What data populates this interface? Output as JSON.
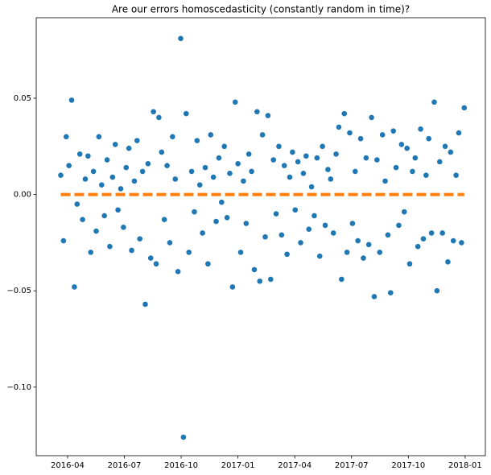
{
  "chart_data": {
    "type": "scatter",
    "title": "Are our errors homoscedasticity (constantly random in time)?",
    "series": [
      {
        "type": "scatter",
        "color": "#1f77b4",
        "x": [
          2016.22,
          2016.232,
          2016.244,
          2016.256,
          2016.268,
          2016.28,
          2016.292,
          2016.304,
          2016.316,
          2016.328,
          2016.34,
          2016.352,
          2016.364,
          2016.376,
          2016.388,
          2016.4,
          2016.412,
          2016.424,
          2016.436,
          2016.448,
          2016.46,
          2016.472,
          2016.484,
          2016.496,
          2016.508,
          2016.52,
          2016.532,
          2016.544,
          2016.556,
          2016.568,
          2016.58,
          2016.592,
          2016.604,
          2016.616,
          2016.628,
          2016.64,
          2016.652,
          2016.664,
          2016.676,
          2016.688,
          2016.7,
          2016.712,
          2016.724,
          2016.736,
          2016.748,
          2016.76,
          2016.772,
          2016.784,
          2016.796,
          2016.808,
          2016.82,
          2016.832,
          2016.844,
          2016.856,
          2016.868,
          2016.88,
          2016.892,
          2016.904,
          2016.916,
          2016.928,
          2016.94,
          2016.952,
          2016.964,
          2016.976,
          2016.988,
          2017.0,
          2017.012,
          2017.024,
          2017.036,
          2017.048,
          2017.06,
          2017.072,
          2017.084,
          2017.096,
          2017.108,
          2017.12,
          2017.132,
          2017.144,
          2017.156,
          2017.168,
          2017.18,
          2017.192,
          2017.204,
          2017.216,
          2017.228,
          2017.24,
          2017.252,
          2017.264,
          2017.276,
          2017.288,
          2017.3,
          2017.312,
          2017.324,
          2017.336,
          2017.348,
          2017.36,
          2017.372,
          2017.384,
          2017.396,
          2017.408,
          2017.42,
          2017.432,
          2017.444,
          2017.456,
          2017.468,
          2017.48,
          2017.492,
          2017.504,
          2017.516,
          2017.528,
          2017.54,
          2017.552,
          2017.564,
          2017.576,
          2017.588,
          2017.6,
          2017.612,
          2017.624,
          2017.636,
          2017.648,
          2017.66,
          2017.672,
          2017.684,
          2017.696,
          2017.708,
          2017.72,
          2017.732,
          2017.744,
          2017.756,
          2017.768,
          2017.78,
          2017.792,
          2017.804,
          2017.816,
          2017.828,
          2017.84,
          2017.852,
          2017.864,
          2017.876,
          2017.888,
          2017.9,
          2017.912,
          2017.924,
          2017.936,
          2017.948,
          2017.96,
          2017.972,
          2017.984,
          2017.996
        ],
        "values": [
          0.01,
          -0.024,
          0.03,
          0.015,
          0.049,
          -0.048,
          -0.005,
          0.021,
          -0.013,
          0.008,
          0.02,
          -0.03,
          0.012,
          -0.019,
          0.03,
          0.005,
          -0.011,
          0.018,
          -0.027,
          0.009,
          0.026,
          -0.008,
          0.003,
          -0.017,
          0.014,
          0.024,
          -0.029,
          0.007,
          0.028,
          -0.023,
          0.012,
          -0.057,
          0.016,
          -0.033,
          0.043,
          -0.036,
          0.04,
          0.022,
          -0.013,
          0.015,
          -0.025,
          0.03,
          0.008,
          -0.04,
          0.081,
          -0.126,
          0.042,
          -0.03,
          0.012,
          -0.009,
          0.028,
          0.005,
          -0.02,
          0.014,
          -0.036,
          0.031,
          0.009,
          -0.014,
          0.019,
          -0.004,
          0.025,
          -0.012,
          0.011,
          -0.048,
          0.048,
          0.016,
          -0.03,
          0.007,
          -0.015,
          0.021,
          0.012,
          -0.039,
          0.043,
          -0.045,
          0.031,
          -0.022,
          0.041,
          -0.044,
          0.018,
          -0.01,
          0.025,
          -0.021,
          0.015,
          -0.031,
          0.009,
          0.022,
          -0.008,
          0.017,
          -0.025,
          0.011,
          0.02,
          -0.018,
          0.004,
          -0.011,
          0.019,
          -0.032,
          0.025,
          -0.016,
          0.013,
          0.008,
          -0.02,
          0.021,
          0.035,
          -0.044,
          0.042,
          -0.03,
          0.032,
          -0.015,
          0.012,
          -0.024,
          0.029,
          -0.033,
          0.019,
          -0.026,
          0.04,
          -0.053,
          0.018,
          -0.03,
          0.031,
          0.007,
          -0.021,
          -0.051,
          0.033,
          0.014,
          -0.016,
          0.026,
          -0.009,
          0.024,
          -0.036,
          0.012,
          0.019,
          -0.027,
          0.034,
          -0.023,
          0.01,
          0.029,
          -0.02,
          0.048,
          -0.05,
          0.017,
          -0.02,
          0.025,
          -0.035,
          0.022,
          -0.024,
          0.01,
          0.032,
          -0.025,
          0.045
        ]
      },
      {
        "type": "line",
        "style": "dashed",
        "color": "#ff7f0e",
        "x": [
          2016.22,
          2017.996
        ],
        "values": [
          0,
          0
        ]
      }
    ],
    "xlim": [
      2016.112,
      2018.089
    ],
    "xticks": [
      {
        "value": 2016.25,
        "label": "2016-04"
      },
      {
        "value": 2016.5,
        "label": "2016-07"
      },
      {
        "value": 2016.75,
        "label": "2016-10"
      },
      {
        "value": 2017.0,
        "label": "2017-01"
      },
      {
        "value": 2017.25,
        "label": "2017-04"
      },
      {
        "value": 2017.5,
        "label": "2017-07"
      },
      {
        "value": 2017.75,
        "label": "2017-10"
      },
      {
        "value": 2018.0,
        "label": "2018-01"
      }
    ],
    "ylim": [
      -0.1356,
      0.0918
    ],
    "yticks": [
      {
        "value": -0.1,
        "label": "−0.10"
      },
      {
        "value": -0.05,
        "label": "−0.05"
      },
      {
        "value": 0,
        "label": "0.00"
      },
      {
        "value": 0.05,
        "label": "0.05"
      }
    ],
    "grid": false
  }
}
